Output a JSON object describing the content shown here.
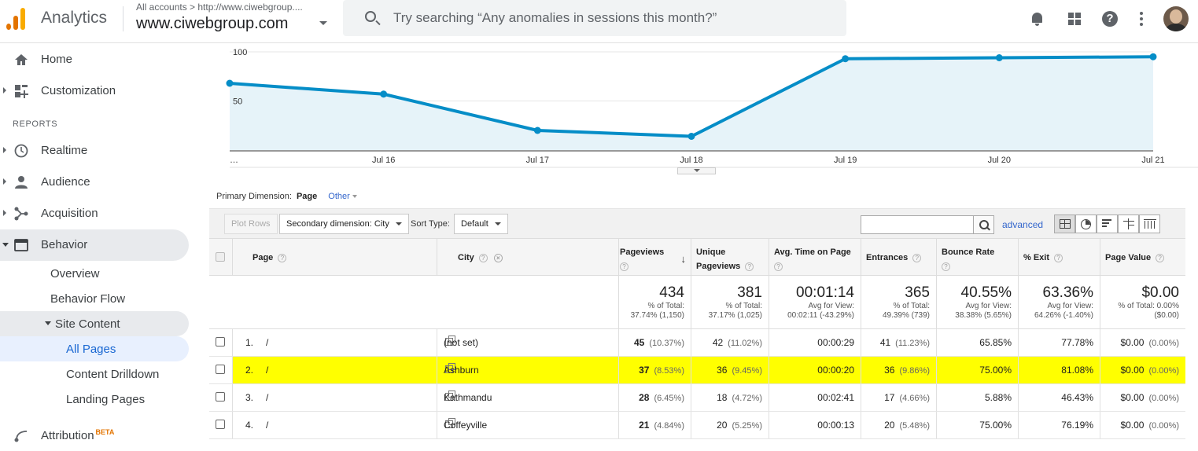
{
  "header": {
    "app_name": "Analytics",
    "account_crumb": "All accounts > http://www.ciwebgroup....",
    "account_name": "www.ciwebgroup.com",
    "search_placeholder": "Try searching “Any anomalies in sessions this month?”",
    "icons": [
      "bell-icon",
      "apps-icon",
      "help-icon",
      "more-vert-icon",
      "avatar"
    ]
  },
  "sidebar": {
    "items": [
      {
        "label": "Home",
        "icon": "home-icon"
      },
      {
        "label": "Customization",
        "icon": "dashboard-icon"
      }
    ],
    "reports_header": "REPORTS",
    "reports": [
      {
        "label": "Realtime",
        "icon": "clock-icon"
      },
      {
        "label": "Audience",
        "icon": "person-icon"
      },
      {
        "label": "Acquisition",
        "icon": "acquisition-icon"
      },
      {
        "label": "Behavior",
        "icon": "behavior-icon"
      }
    ],
    "behavior_sub": [
      "Overview",
      "Behavior Flow",
      "Site Content"
    ],
    "site_content_sub": [
      "All Pages",
      "Content Drilldown",
      "Landing Pages"
    ],
    "attribution": {
      "label": "Attribution",
      "badge": "BETA"
    }
  },
  "chart_data": {
    "type": "area",
    "categories": [
      "…",
      "Jul 16",
      "Jul 17",
      "Jul 18",
      "Jul 19",
      "Jul 20",
      "Jul 21"
    ],
    "values": [
      68,
      57,
      20,
      14,
      93,
      94,
      95
    ],
    "y_ticks": [
      "100",
      "50"
    ],
    "ylim": [
      0,
      100
    ],
    "color": "#058dc7",
    "fill": "#e6f3f9",
    "grid": true
  },
  "primary_dimension": {
    "label": "Primary Dimension:",
    "selected": "Page",
    "other": "Other"
  },
  "toolbar": {
    "plot_rows": "Plot Rows",
    "secondary_dimension": "Secondary dimension: City",
    "sort_type_label": "Sort Type:",
    "sort_type_value": "Default",
    "advanced": "advanced"
  },
  "table": {
    "columns": {
      "page": "Page",
      "city": "City",
      "pageviews": "Pageviews",
      "unique_pageviews_1": "Unique",
      "unique_pageviews_2": "Pageviews",
      "avg_time": "Avg. Time on Page",
      "entrances": "Entrances",
      "bounce_rate": "Bounce Rate",
      "exit": "% Exit",
      "page_value": "Page Value"
    },
    "totals": {
      "pageviews": {
        "value": "434",
        "l1": "% of Total:",
        "l2": "37.74% (1,150)"
      },
      "unique": {
        "value": "381",
        "l1": "% of Total:",
        "l2": "37.17% (1,025)"
      },
      "avg_time": {
        "value": "00:01:14",
        "l1": "Avg for View:",
        "l2": "00:02:11 (-43.29%)"
      },
      "entrances": {
        "value": "365",
        "l1": "% of Total:",
        "l2": "49.39% (739)"
      },
      "bounce": {
        "value": "40.55%",
        "l1": "Avg for View:",
        "l2": "38.38% (5.65%)"
      },
      "exit": {
        "value": "63.36%",
        "l1": "Avg for View:",
        "l2": "64.26% (-1.40%)"
      },
      "page_value": {
        "value": "$0.00",
        "l1": "% of Total: 0.00%",
        "l2": "($0.00)"
      }
    },
    "rows": [
      {
        "idx": "1.",
        "page": "/",
        "city": "(not set)",
        "pv": "45",
        "pv_pct": "(10.37%)",
        "upv": "42",
        "upv_pct": "(11.02%)",
        "time": "00:00:29",
        "ent": "41",
        "ent_pct": "(11.23%)",
        "bounce": "65.85%",
        "exit": "77.78%",
        "val": "$0.00",
        "val_pct": "(0.00%)"
      },
      {
        "idx": "2.",
        "page": "/",
        "city": "Ashburn",
        "pv": "37",
        "pv_pct": "(8.53%)",
        "upv": "36",
        "upv_pct": "(9.45%)",
        "time": "00:00:20",
        "ent": "36",
        "ent_pct": "(9.86%)",
        "bounce": "75.00%",
        "exit": "81.08%",
        "val": "$0.00",
        "val_pct": "(0.00%)"
      },
      {
        "idx": "3.",
        "page": "/",
        "city": "Kathmandu",
        "pv": "28",
        "pv_pct": "(6.45%)",
        "upv": "18",
        "upv_pct": "(4.72%)",
        "time": "00:02:41",
        "ent": "17",
        "ent_pct": "(4.66%)",
        "bounce": "5.88%",
        "exit": "46.43%",
        "val": "$0.00",
        "val_pct": "(0.00%)"
      },
      {
        "idx": "4.",
        "page": "/",
        "city": "Coffeyville",
        "pv": "21",
        "pv_pct": "(4.84%)",
        "upv": "20",
        "upv_pct": "(5.25%)",
        "time": "00:00:13",
        "ent": "20",
        "ent_pct": "(5.48%)",
        "bounce": "75.00%",
        "exit": "76.19%",
        "val": "$0.00",
        "val_pct": "(0.00%)"
      }
    ],
    "highlight_color": "#ffff00"
  }
}
